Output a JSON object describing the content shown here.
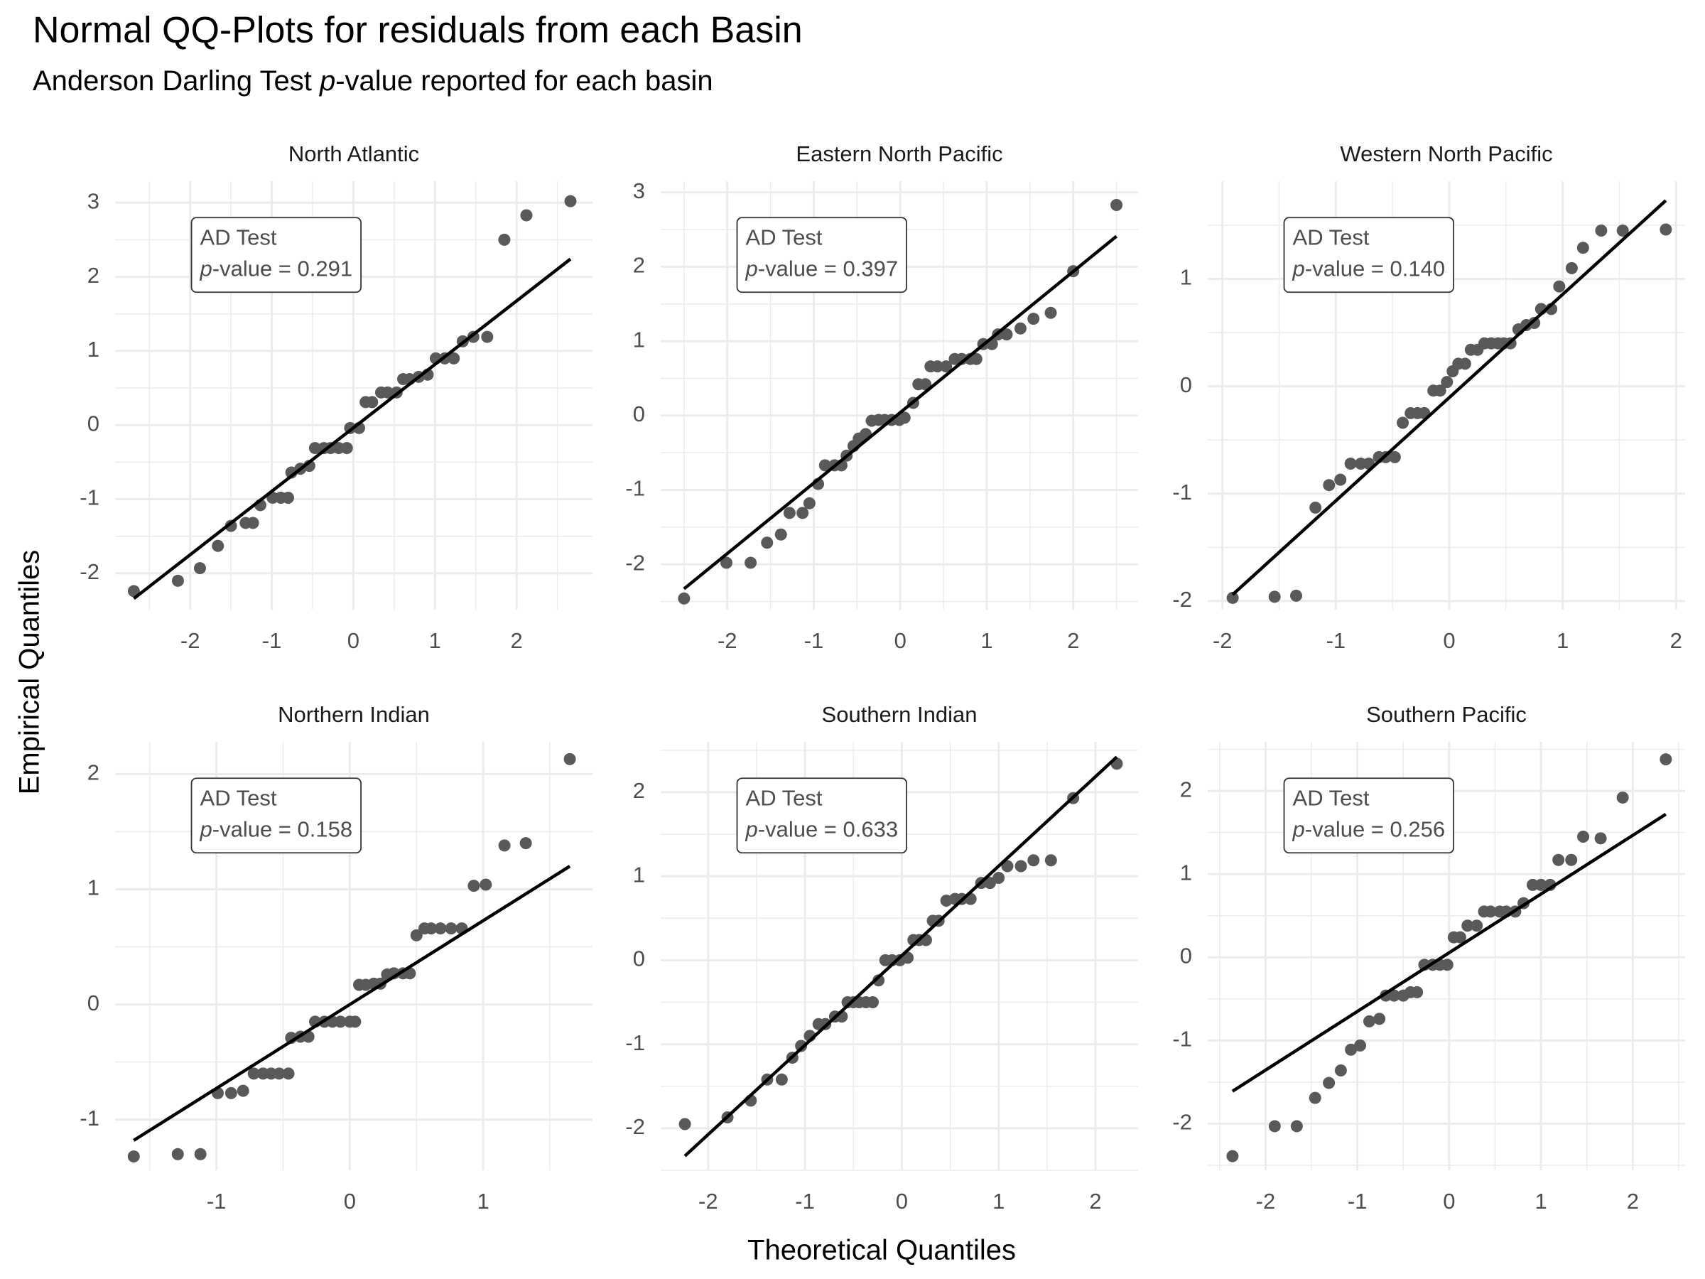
{
  "title": "Normal QQ-Plots for residuals from each Basin",
  "subtitle": "Anderson Darling Test p-value reported for each basin",
  "x_label": "Theoretical Quantiles",
  "y_label": "Empirical Quantiles",
  "chart_data": [
    {
      "type": "scatter",
      "title": "North Atlantic",
      "color": "#595959",
      "x": [
        -2.69,
        -2.15,
        -1.88,
        -1.66,
        -1.5,
        -1.32,
        -1.23,
        -1.14,
        -0.99,
        -0.89,
        -0.8,
        -0.76,
        -0.65,
        -0.54,
        -0.47,
        -0.36,
        -0.28,
        -0.18,
        -0.08,
        -0.04,
        0.07,
        0.15,
        0.23,
        0.34,
        0.42,
        0.53,
        0.61,
        0.69,
        0.8,
        0.91,
        1.01,
        1.12,
        1.23,
        1.34,
        1.47,
        1.64,
        1.85,
        2.12,
        2.66
      ],
      "values": [
        -2.24,
        -2.1,
        -1.93,
        -1.63,
        -1.36,
        -1.32,
        -1.32,
        -1.08,
        -0.98,
        -0.98,
        -0.98,
        -0.64,
        -0.59,
        -0.55,
        -0.31,
        -0.31,
        -0.31,
        -0.31,
        -0.31,
        -0.04,
        -0.04,
        0.31,
        0.31,
        0.44,
        0.44,
        0.44,
        0.62,
        0.62,
        0.65,
        0.68,
        0.9,
        0.9,
        0.9,
        1.13,
        1.19,
        1.19,
        2.5,
        2.83,
        3.02
      ],
      "line": {
        "x": [
          -2.69,
          2.66
        ],
        "y": [
          -2.34,
          2.24
        ],
        "color": "#000000"
      },
      "annotation": [
        "AD Test",
        "p-value = 0.291"
      ],
      "xlim": [
        -2.92,
        2.93
      ],
      "ylim": [
        -2.49,
        3.29
      ],
      "xticks": [
        -2,
        -1,
        0,
        1,
        2
      ],
      "yticks": [
        -2,
        -1,
        0,
        1,
        2,
        3
      ],
      "grid": true
    },
    {
      "type": "scatter",
      "title": "Eastern North Pacific",
      "color": "#595959",
      "x": [
        -2.5,
        -2.01,
        -1.73,
        -1.54,
        -1.38,
        -1.28,
        -1.13,
        -1.05,
        -0.95,
        -0.87,
        -0.76,
        -0.68,
        -0.62,
        -0.54,
        -0.48,
        -0.4,
        -0.33,
        -0.25,
        -0.18,
        -0.1,
        -0.01,
        0.05,
        0.15,
        0.21,
        0.29,
        0.35,
        0.43,
        0.53,
        0.63,
        0.71,
        0.81,
        0.88,
        0.96,
        1.06,
        1.13,
        1.23,
        1.39,
        1.54,
        1.74,
        2.0,
        2.5
      ],
      "values": [
        -2.46,
        -1.98,
        -1.98,
        -1.71,
        -1.6,
        -1.31,
        -1.31,
        -1.18,
        -0.92,
        -0.67,
        -0.67,
        -0.67,
        -0.54,
        -0.41,
        -0.31,
        -0.25,
        -0.07,
        -0.06,
        -0.06,
        -0.06,
        -0.06,
        -0.03,
        0.17,
        0.42,
        0.42,
        0.66,
        0.66,
        0.66,
        0.76,
        0.76,
        0.76,
        0.76,
        0.96,
        0.96,
        1.09,
        1.09,
        1.17,
        1.3,
        1.38,
        1.94,
        2.83
      ],
      "line": {
        "x": [
          -2.5,
          2.5
        ],
        "y": [
          -2.33,
          2.41
        ],
        "color": "#000000"
      },
      "annotation": [
        "AD Test",
        "p-value = 0.397"
      ],
      "xlim": [
        -2.77,
        2.75
      ],
      "ylim": [
        -2.61,
        3.15
      ],
      "xticks": [
        -2,
        -1,
        0,
        1,
        2
      ],
      "yticks": [
        -2,
        -1,
        0,
        1,
        2,
        3
      ],
      "grid": true
    },
    {
      "type": "scatter",
      "title": "Western North Pacific",
      "color": "#595959",
      "x": [
        -1.91,
        -1.54,
        -1.35,
        -1.18,
        -1.06,
        -0.96,
        -0.87,
        -0.78,
        -0.71,
        -0.62,
        -0.56,
        -0.48,
        -0.41,
        -0.34,
        -0.28,
        -0.22,
        -0.14,
        -0.08,
        -0.02,
        0.03,
        0.08,
        0.14,
        0.19,
        0.25,
        0.31,
        0.37,
        0.43,
        0.48,
        0.54,
        0.61,
        0.68,
        0.75,
        0.81,
        0.9,
        0.97,
        1.08,
        1.18,
        1.34,
        1.53,
        1.91
      ],
      "values": [
        -1.97,
        -1.96,
        -1.95,
        -1.13,
        -0.92,
        -0.87,
        -0.72,
        -0.72,
        -0.72,
        -0.66,
        -0.66,
        -0.66,
        -0.34,
        -0.25,
        -0.25,
        -0.25,
        -0.04,
        -0.04,
        0.04,
        0.14,
        0.21,
        0.21,
        0.34,
        0.34,
        0.4,
        0.4,
        0.4,
        0.4,
        0.4,
        0.53,
        0.57,
        0.59,
        0.72,
        0.72,
        0.93,
        1.1,
        1.29,
        1.45,
        1.45,
        1.46
      ],
      "line": {
        "x": [
          -1.91,
          1.91
        ],
        "y": [
          -1.94,
          1.73
        ],
        "color": "#000000"
      },
      "annotation": [
        "AD Test",
        "p-value = 0.140"
      ],
      "xlim": [
        -2.13,
        2.08
      ],
      "ylim": [
        -2.08,
        1.91
      ],
      "xticks": [
        -2,
        -1,
        0,
        1,
        2
      ],
      "yticks": [
        -2,
        -1,
        0,
        1
      ],
      "grid": true
    },
    {
      "type": "scatter",
      "title": "Northern Indian",
      "color": "#595959",
      "x": [
        -1.62,
        -1.29,
        -1.12,
        -0.99,
        -0.89,
        -0.8,
        -0.72,
        -0.65,
        -0.59,
        -0.53,
        -0.46,
        -0.44,
        -0.37,
        -0.31,
        -0.26,
        -0.19,
        -0.13,
        -0.07,
        0.0,
        0.04,
        0.07,
        0.12,
        0.18,
        0.23,
        0.28,
        0.33,
        0.4,
        0.45,
        0.5,
        0.56,
        0.61,
        0.68,
        0.76,
        0.84,
        0.93,
        1.02,
        1.16,
        1.32,
        1.65
      ],
      "values": [
        -1.32,
        -1.3,
        -1.3,
        -0.77,
        -0.77,
        -0.75,
        -0.6,
        -0.6,
        -0.6,
        -0.6,
        -0.6,
        -0.29,
        -0.28,
        -0.28,
        -0.15,
        -0.15,
        -0.15,
        -0.15,
        -0.15,
        -0.15,
        0.17,
        0.17,
        0.18,
        0.18,
        0.26,
        0.27,
        0.27,
        0.27,
        0.6,
        0.66,
        0.66,
        0.66,
        0.66,
        0.66,
        1.03,
        1.04,
        1.38,
        1.4,
        2.13
      ],
      "line": {
        "x": [
          -1.62,
          1.65
        ],
        "y": [
          -1.18,
          1.2
        ],
        "color": "#000000"
      },
      "annotation": [
        "AD Test",
        "p-value = 0.158"
      ],
      "xlim": [
        -1.76,
        1.82
      ],
      "ylim": [
        -1.44,
        2.28
      ],
      "xticks": [
        -1,
        0,
        1
      ],
      "yticks": [
        -1,
        0,
        1,
        2
      ],
      "grid": true
    },
    {
      "type": "scatter",
      "title": "Southern Indian",
      "color": "#595959",
      "x": [
        -2.24,
        -1.8,
        -1.56,
        -1.39,
        -1.24,
        -1.13,
        -1.04,
        -0.95,
        -0.86,
        -0.79,
        -0.69,
        -0.62,
        -0.56,
        -0.5,
        -0.44,
        -0.37,
        -0.3,
        -0.24,
        -0.17,
        -0.1,
        -0.02,
        0.06,
        0.12,
        0.18,
        0.25,
        0.32,
        0.38,
        0.46,
        0.55,
        0.62,
        0.71,
        0.82,
        0.91,
        1.0,
        1.09,
        1.23,
        1.36,
        1.54,
        1.77,
        2.22
      ],
      "values": [
        -1.95,
        -1.87,
        -1.67,
        -1.42,
        -1.42,
        -1.16,
        -1.02,
        -0.9,
        -0.76,
        -0.76,
        -0.67,
        -0.67,
        -0.5,
        -0.5,
        -0.5,
        -0.5,
        -0.5,
        -0.24,
        0.0,
        0.0,
        0.0,
        0.03,
        0.24,
        0.24,
        0.24,
        0.47,
        0.47,
        0.71,
        0.73,
        0.73,
        0.73,
        0.92,
        0.92,
        0.98,
        1.12,
        1.12,
        1.19,
        1.19,
        1.93,
        2.34
      ],
      "line": {
        "x": [
          -2.24,
          2.22
        ],
        "y": [
          -2.33,
          2.42
        ],
        "color": "#000000"
      },
      "annotation": [
        "AD Test",
        "p-value = 0.633"
      ],
      "xlim": [
        -2.49,
        2.44
      ],
      "ylim": [
        -2.5,
        2.6
      ],
      "xticks": [
        -2,
        -1,
        0,
        1,
        2
      ],
      "yticks": [
        -2,
        -1,
        0,
        1,
        2
      ],
      "grid": true
    },
    {
      "type": "scatter",
      "title": "Southern Pacific",
      "color": "#595959",
      "x": [
        -2.36,
        -1.9,
        -1.66,
        -1.46,
        -1.31,
        -1.18,
        -1.07,
        -0.97,
        -0.87,
        -0.76,
        -0.69,
        -0.6,
        -0.5,
        -0.42,
        -0.35,
        -0.27,
        -0.18,
        -0.1,
        -0.02,
        0.05,
        0.12,
        0.2,
        0.3,
        0.38,
        0.45,
        0.55,
        0.62,
        0.72,
        0.81,
        0.91,
        1.0,
        1.1,
        1.19,
        1.33,
        1.46,
        1.65,
        1.89,
        2.36
      ],
      "values": [
        -2.39,
        -2.03,
        -2.03,
        -1.69,
        -1.51,
        -1.36,
        -1.11,
        -1.06,
        -0.77,
        -0.74,
        -0.46,
        -0.46,
        -0.46,
        -0.42,
        -0.42,
        -0.09,
        -0.09,
        -0.09,
        -0.09,
        0.24,
        0.24,
        0.38,
        0.38,
        0.55,
        0.55,
        0.55,
        0.55,
        0.55,
        0.65,
        0.87,
        0.87,
        0.87,
        1.17,
        1.17,
        1.45,
        1.43,
        1.92,
        2.38
      ],
      "line": {
        "x": [
          -2.36,
          2.36
        ],
        "y": [
          -1.61,
          1.72
        ],
        "color": "#000000"
      },
      "annotation": [
        "AD Test",
        "p-value = 0.256"
      ],
      "xlim": [
        -2.63,
        2.57
      ],
      "ylim": [
        -2.56,
        2.59
      ],
      "xticks": [
        -2,
        -1,
        0,
        1,
        2
      ],
      "yticks": [
        -2,
        -1,
        0,
        1,
        2
      ],
      "grid": true
    }
  ]
}
